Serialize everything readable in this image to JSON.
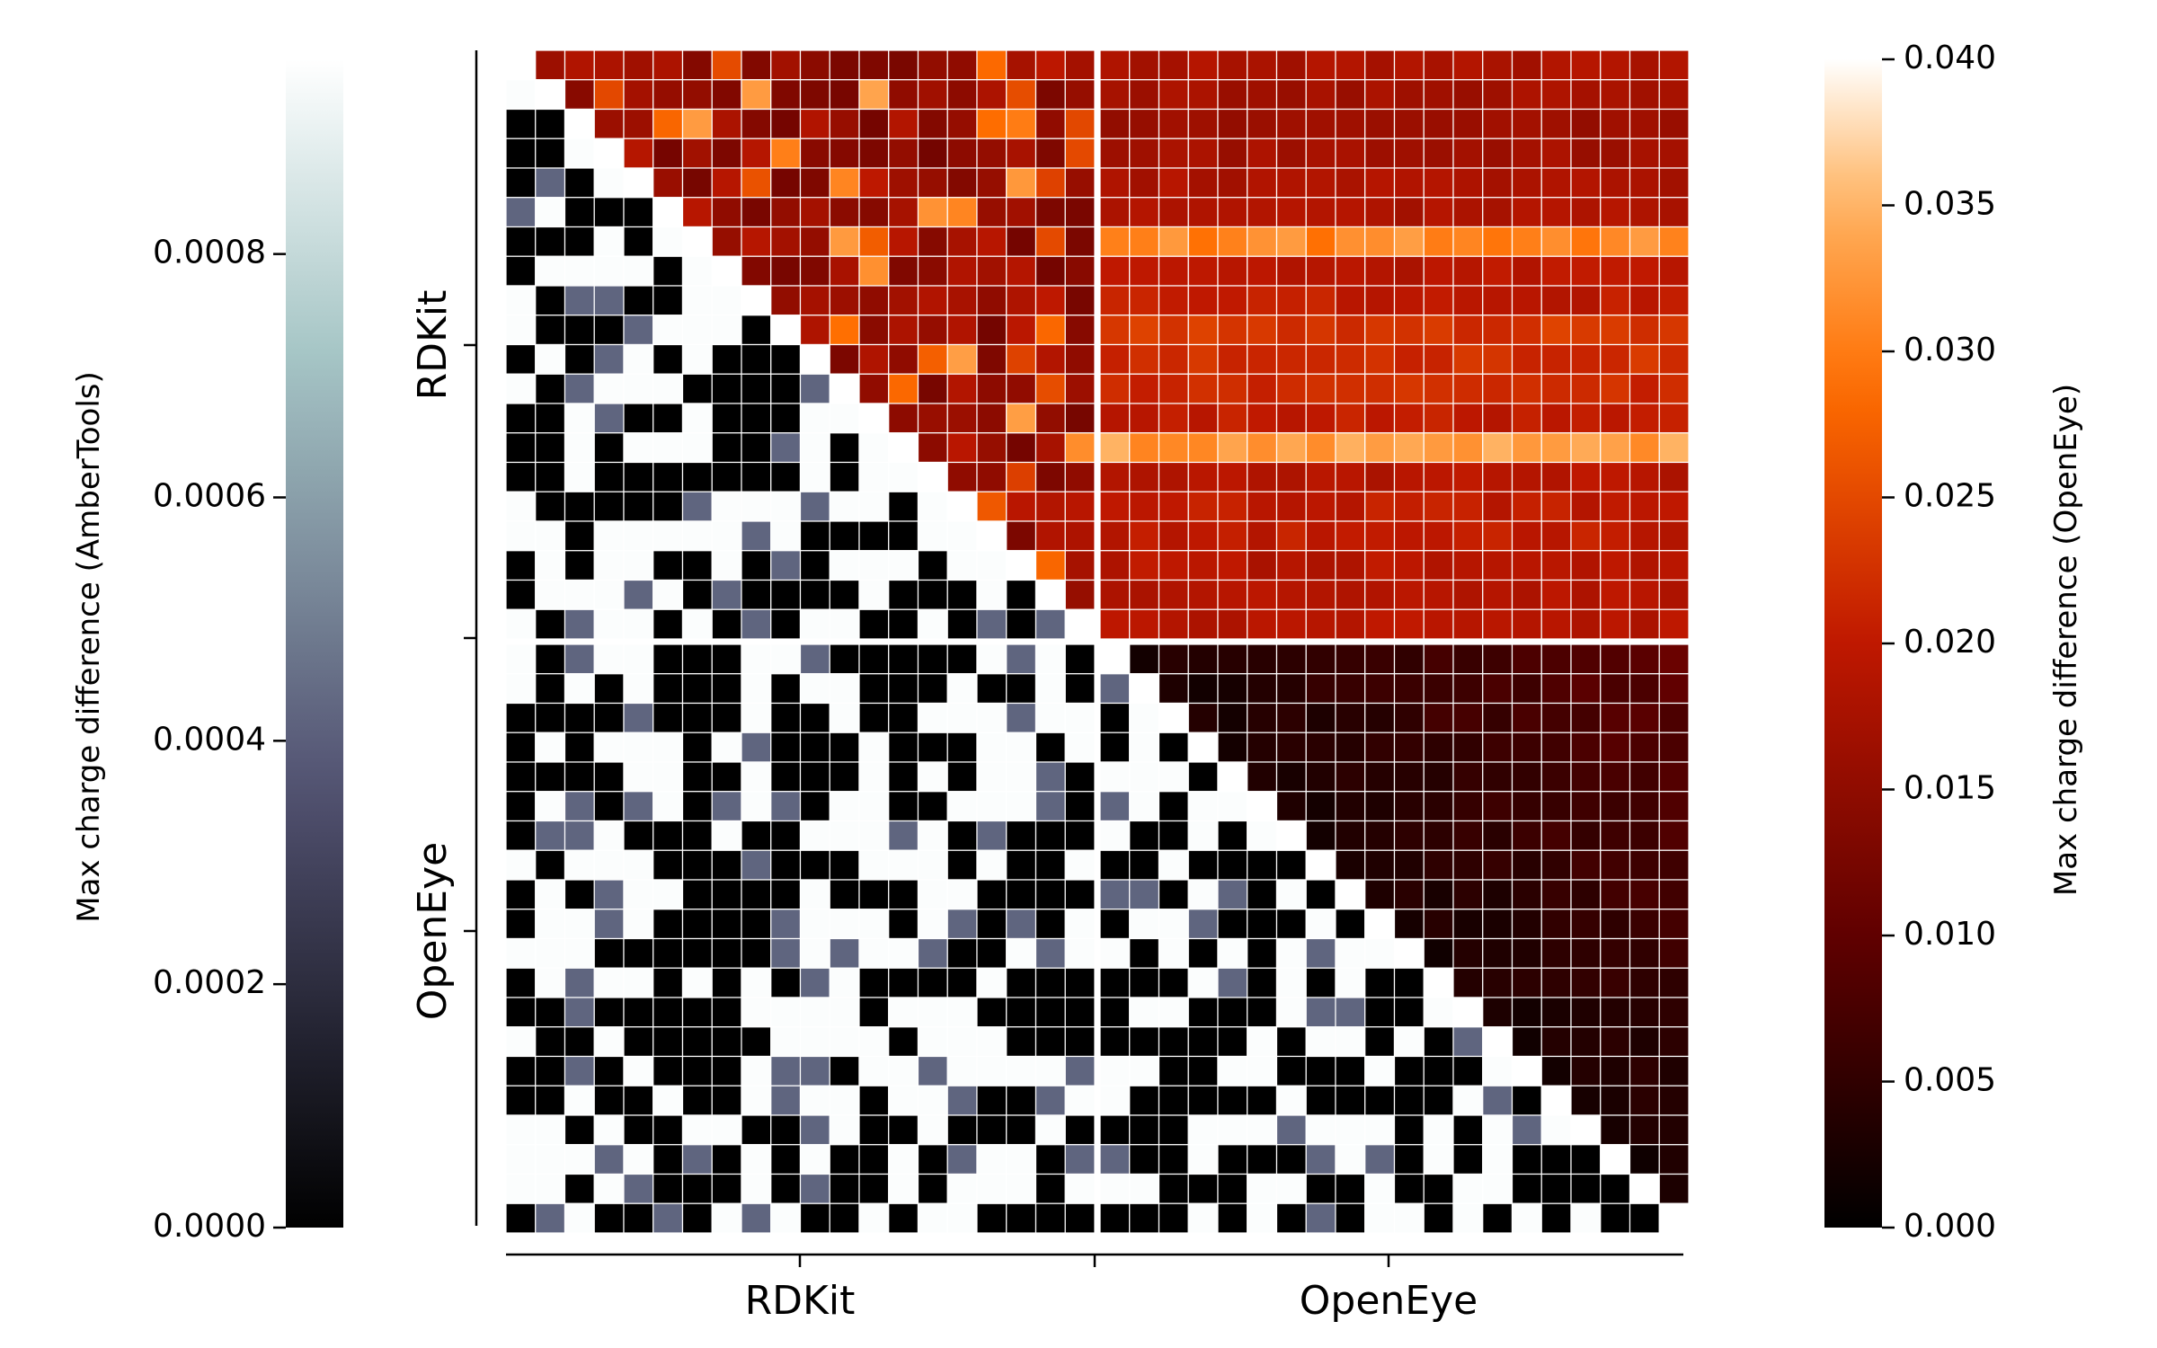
{
  "chart_data": {
    "type": "heatmap",
    "description_note": "",
    "group_labels": [
      "RDKit",
      "OpenEye"
    ],
    "x_group_labels": [
      "RDKit",
      "OpenEye"
    ],
    "y_group_labels": [
      "RDKit",
      "OpenEye"
    ],
    "n_cells_per_group": 20,
    "lower_triangle_matrix": {
      "colorbar_label": "Max charge difference (AmberTools)",
      "colormap": "bone",
      "vmin": 0.0,
      "vmax": 0.00096,
      "ticks": [
        {
          "value": 0.0,
          "label": "0.0000"
        },
        {
          "value": 0.0002,
          "label": "0.0002"
        },
        {
          "value": 0.0004,
          "label": "0.0004"
        },
        {
          "value": 0.0006,
          "label": "0.0006"
        },
        {
          "value": 0.0008,
          "label": "0.0008"
        }
      ]
    },
    "upper_triangle_matrix": {
      "colorbar_label": "Max charge difference (OpenEye)",
      "colormap": "gist_heat",
      "vmin": 0.0,
      "vmax": 0.04,
      "ticks": [
        {
          "value": 0.0,
          "label": "0.000"
        },
        {
          "value": 0.005,
          "label": "0.005"
        },
        {
          "value": 0.01,
          "label": "0.010"
        },
        {
          "value": 0.015,
          "label": "0.015"
        },
        {
          "value": 0.02,
          "label": "0.020"
        },
        {
          "value": 0.025,
          "label": "0.025"
        },
        {
          "value": 0.03,
          "label": "0.030"
        },
        {
          "value": 0.035,
          "label": "0.035"
        },
        {
          "value": 0.04,
          "label": "0.040"
        }
      ],
      "row_values_rdkit_vs_openeye": [
        0.018,
        0.017,
        0.016,
        0.017,
        0.018,
        0.018,
        0.031,
        0.019,
        0.02,
        0.023,
        0.022,
        0.022,
        0.02,
        0.033,
        0.019,
        0.02,
        0.02,
        0.019,
        0.019,
        0.019
      ]
    }
  }
}
